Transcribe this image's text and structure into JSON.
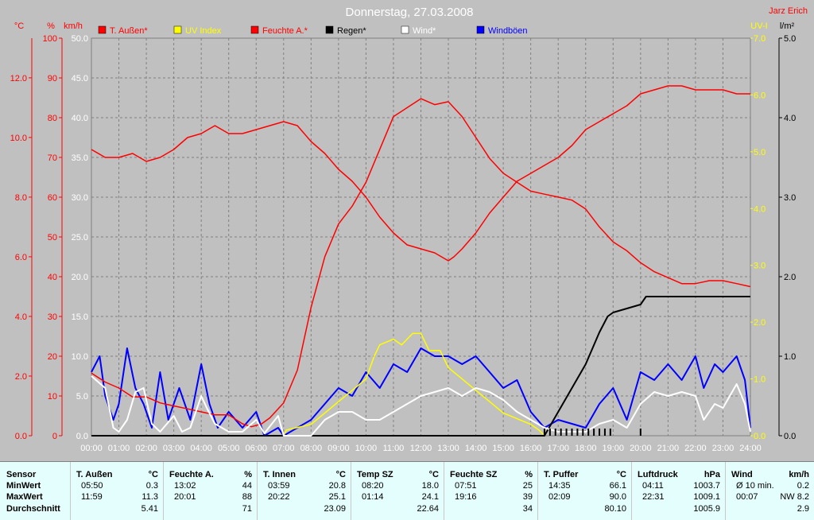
{
  "chart_data": {
    "type": "line",
    "title": "Donnerstag, 27.03.2008",
    "author": "Jarz Erich",
    "x_tick_labels": [
      "00:00",
      "01:00",
      "02:00",
      "03:00",
      "04:00",
      "05:00",
      "06:00",
      "07:00",
      "08:00",
      "09:00",
      "10:00",
      "11:00",
      "12:00",
      "13:00",
      "14:00",
      "15:00",
      "16:00",
      "17:00",
      "18:00",
      "19:00",
      "20:00",
      "21:00",
      "22:00",
      "23:00",
      "24:00"
    ],
    "axes": {
      "temp": {
        "unit": "°C",
        "ticks": [
          "0.0",
          "2.0",
          "4.0",
          "6.0",
          "8.0",
          "10.0",
          "12.0"
        ],
        "range": [
          0,
          13.33
        ]
      },
      "hum": {
        "unit": "%",
        "ticks": [
          "0",
          "10",
          "20",
          "30",
          "40",
          "50",
          "60",
          "70",
          "80",
          "90",
          "100"
        ],
        "range": [
          0,
          100
        ]
      },
      "wind": {
        "unit": "km/h",
        "ticks": [
          "0.0",
          "5.0",
          "10.0",
          "15.0",
          "20.0",
          "25.0",
          "30.0",
          "35.0",
          "40.0",
          "45.0",
          "50.0"
        ],
        "range": [
          0,
          50
        ]
      },
      "uv": {
        "unit": "UV-I",
        "ticks": [
          "0.0",
          "1.0",
          "2.0",
          "3.0",
          "4.0",
          "5.0",
          "6.0",
          "7.0"
        ],
        "range": [
          0,
          7
        ]
      },
      "rain": {
        "unit": "l/m²",
        "ticks": [
          "0.0",
          "1.0",
          "2.0",
          "3.0",
          "4.0",
          "5.0"
        ],
        "range": [
          0,
          5
        ]
      }
    },
    "grid": true,
    "legend_position": "top",
    "series": [
      {
        "name": "T. Außen*",
        "color": "#ff0000",
        "axis": "temp",
        "points": [
          [
            0,
            2.1
          ],
          [
            0.5,
            1.8
          ],
          [
            1,
            1.6
          ],
          [
            1.5,
            1.3
          ],
          [
            2,
            1.3
          ],
          [
            2.5,
            1.1
          ],
          [
            3,
            1.0
          ],
          [
            3.5,
            0.9
          ],
          [
            4,
            0.8
          ],
          [
            4.5,
            0.7
          ],
          [
            5,
            0.7
          ],
          [
            5.5,
            0.4
          ],
          [
            5.83,
            0.3
          ],
          [
            6.2,
            0.4
          ],
          [
            6.5,
            0.6
          ],
          [
            7,
            1.1
          ],
          [
            7.5,
            2.2
          ],
          [
            8,
            4.3
          ],
          [
            8.5,
            6.0
          ],
          [
            9,
            7.1
          ],
          [
            9.5,
            7.7
          ],
          [
            10,
            8.5
          ],
          [
            10.5,
            9.6
          ],
          [
            11,
            10.7
          ],
          [
            11.5,
            11.0
          ],
          [
            12,
            11.3
          ],
          [
            12.5,
            11.1
          ],
          [
            13,
            11.2
          ],
          [
            13.5,
            10.7
          ],
          [
            14,
            10.0
          ],
          [
            14.5,
            9.3
          ],
          [
            15,
            8.8
          ],
          [
            15.5,
            8.5
          ],
          [
            16,
            8.2
          ],
          [
            16.5,
            8.1
          ],
          [
            17,
            8.0
          ],
          [
            17.5,
            7.9
          ],
          [
            18,
            7.6
          ],
          [
            18.5,
            7.0
          ],
          [
            19,
            6.5
          ],
          [
            19.5,
            6.2
          ],
          [
            20,
            5.8
          ],
          [
            20.5,
            5.5
          ],
          [
            21,
            5.3
          ],
          [
            21.5,
            5.1
          ],
          [
            22,
            5.1
          ],
          [
            22.5,
            5.2
          ],
          [
            23,
            5.2
          ],
          [
            23.5,
            5.1
          ],
          [
            24,
            5.0
          ]
        ]
      },
      {
        "name": "UV Index",
        "color": "#ffff00",
        "axis": "uv",
        "points": [
          [
            0,
            0
          ],
          [
            7,
            0
          ],
          [
            7.1,
            0.1
          ],
          [
            8,
            0.2
          ],
          [
            8.5,
            0.4
          ],
          [
            9,
            0.6
          ],
          [
            9.5,
            0.8
          ],
          [
            10,
            1.0
          ],
          [
            10.3,
            1.4
          ],
          [
            10.5,
            1.6
          ],
          [
            11,
            1.7
          ],
          [
            11.3,
            1.6
          ],
          [
            11.7,
            1.8
          ],
          [
            12,
            1.8
          ],
          [
            12.3,
            1.5
          ],
          [
            12.7,
            1.5
          ],
          [
            13,
            1.2
          ],
          [
            13.5,
            1.0
          ],
          [
            14,
            0.8
          ],
          [
            14.5,
            0.6
          ],
          [
            15,
            0.4
          ],
          [
            15.5,
            0.3
          ],
          [
            16,
            0.2
          ],
          [
            16.3,
            0.1
          ],
          [
            16.5,
            0
          ]
        ]
      },
      {
        "name": "Feuchte A.*",
        "color": "#ff0000",
        "axis": "hum",
        "points": [
          [
            0,
            72
          ],
          [
            0.5,
            70
          ],
          [
            1,
            70
          ],
          [
            1.5,
            71
          ],
          [
            2,
            69
          ],
          [
            2.5,
            70
          ],
          [
            3,
            72
          ],
          [
            3.5,
            75
          ],
          [
            4,
            76
          ],
          [
            4.5,
            78
          ],
          [
            5,
            76
          ],
          [
            5.5,
            76
          ],
          [
            6,
            77
          ],
          [
            6.5,
            78
          ],
          [
            7,
            79
          ],
          [
            7.5,
            78
          ],
          [
            8,
            74
          ],
          [
            8.5,
            71
          ],
          [
            9,
            67
          ],
          [
            9.5,
            64
          ],
          [
            10,
            60
          ],
          [
            10.5,
            55
          ],
          [
            11,
            51
          ],
          [
            11.5,
            48
          ],
          [
            12,
            47
          ],
          [
            12.5,
            46
          ],
          [
            13,
            44
          ],
          [
            13.2,
            45
          ],
          [
            13.5,
            47
          ],
          [
            14,
            51
          ],
          [
            14.5,
            56
          ],
          [
            15,
            60
          ],
          [
            15.5,
            64
          ],
          [
            16,
            66
          ],
          [
            16.5,
            68
          ],
          [
            17,
            70
          ],
          [
            17.5,
            73
          ],
          [
            18,
            77
          ],
          [
            18.5,
            79
          ],
          [
            19,
            81
          ],
          [
            19.5,
            83
          ],
          [
            20,
            86
          ],
          [
            20.5,
            87
          ],
          [
            21,
            88
          ],
          [
            21.5,
            88
          ],
          [
            22,
            87
          ],
          [
            22.5,
            87
          ],
          [
            23,
            87
          ],
          [
            23.5,
            86
          ],
          [
            24,
            86
          ]
        ]
      },
      {
        "name": "Regen*",
        "color": "#000000",
        "axis": "rain",
        "points": [
          [
            0,
            0
          ],
          [
            16.5,
            0
          ],
          [
            17,
            0.3
          ],
          [
            17.5,
            0.6
          ],
          [
            18,
            0.9
          ],
          [
            18.5,
            1.3
          ],
          [
            18.8,
            1.5
          ],
          [
            19,
            1.55
          ],
          [
            19.5,
            1.6
          ],
          [
            20,
            1.65
          ],
          [
            20.2,
            1.75
          ],
          [
            21,
            1.75
          ],
          [
            22,
            1.75
          ],
          [
            23,
            1.75
          ],
          [
            24,
            1.75
          ]
        ]
      },
      {
        "name": "Wind*",
        "color": "#ffffff",
        "axis": "wind",
        "points": [
          [
            0,
            7.5
          ],
          [
            0.5,
            6.0
          ],
          [
            0.8,
            1.0
          ],
          [
            1,
            0.5
          ],
          [
            1.3,
            2.0
          ],
          [
            1.6,
            5.5
          ],
          [
            1.9,
            6.0
          ],
          [
            2.2,
            1.5
          ],
          [
            2.5,
            0.5
          ],
          [
            3,
            2.5
          ],
          [
            3.3,
            0.5
          ],
          [
            3.6,
            1.0
          ],
          [
            3.8,
            3.0
          ],
          [
            4,
            5.0
          ],
          [
            4.2,
            3.5
          ],
          [
            4.5,
            1.5
          ],
          [
            5,
            0.5
          ],
          [
            5.5,
            0.5
          ],
          [
            6,
            2.0
          ],
          [
            6.3,
            0.3
          ],
          [
            6.8,
            2.5
          ],
          [
            7,
            0
          ],
          [
            8,
            0
          ],
          [
            8.5,
            2.0
          ],
          [
            9,
            3.0
          ],
          [
            9.5,
            3.0
          ],
          [
            10,
            2.0
          ],
          [
            10.5,
            2.0
          ],
          [
            11,
            3.0
          ],
          [
            11.5,
            4.0
          ],
          [
            12,
            5.0
          ],
          [
            12.5,
            5.5
          ],
          [
            13,
            6.0
          ],
          [
            13.5,
            5.0
          ],
          [
            14,
            6.0
          ],
          [
            14.5,
            5.5
          ],
          [
            15,
            4.5
          ],
          [
            15.5,
            3.0
          ],
          [
            16,
            2.0
          ],
          [
            16.5,
            1.0
          ],
          [
            17,
            0.5
          ],
          [
            18,
            0.5
          ],
          [
            18.5,
            1.5
          ],
          [
            19,
            2.0
          ],
          [
            19.5,
            1.0
          ],
          [
            20,
            4.0
          ],
          [
            20.5,
            5.5
          ],
          [
            21,
            5.0
          ],
          [
            21.5,
            5.5
          ],
          [
            22,
            5.0
          ],
          [
            22.3,
            2.0
          ],
          [
            22.7,
            4.0
          ],
          [
            23,
            3.5
          ],
          [
            23.5,
            6.5
          ],
          [
            23.8,
            4.0
          ],
          [
            24,
            0.5
          ]
        ]
      },
      {
        "name": "Windböen",
        "color": "#0000ff",
        "axis": "wind",
        "points": [
          [
            0,
            8
          ],
          [
            0.3,
            10
          ],
          [
            0.5,
            5
          ],
          [
            0.8,
            2
          ],
          [
            1,
            4
          ],
          [
            1.3,
            11
          ],
          [
            1.6,
            6
          ],
          [
            1.9,
            4
          ],
          [
            2.2,
            1
          ],
          [
            2.5,
            8
          ],
          [
            2.8,
            2
          ],
          [
            3.2,
            6
          ],
          [
            3.6,
            2
          ],
          [
            4,
            9
          ],
          [
            4.3,
            4
          ],
          [
            4.6,
            1
          ],
          [
            5,
            3
          ],
          [
            5.5,
            1
          ],
          [
            6,
            3
          ],
          [
            6.3,
            0
          ],
          [
            6.8,
            1
          ],
          [
            7,
            0
          ],
          [
            8,
            2
          ],
          [
            8.5,
            4
          ],
          [
            9,
            6
          ],
          [
            9.5,
            5
          ],
          [
            10,
            8
          ],
          [
            10.5,
            6
          ],
          [
            11,
            9
          ],
          [
            11.5,
            8
          ],
          [
            12,
            11
          ],
          [
            12.5,
            10
          ],
          [
            13,
            10
          ],
          [
            13.5,
            9
          ],
          [
            14,
            10
          ],
          [
            14.5,
            8
          ],
          [
            15,
            6
          ],
          [
            15.5,
            7
          ],
          [
            16,
            3
          ],
          [
            16.5,
            1
          ],
          [
            17,
            2
          ],
          [
            18,
            1
          ],
          [
            18.5,
            4
          ],
          [
            19,
            6
          ],
          [
            19.5,
            2
          ],
          [
            20,
            8
          ],
          [
            20.5,
            7
          ],
          [
            21,
            9
          ],
          [
            21.5,
            7
          ],
          [
            22,
            10
          ],
          [
            22.3,
            6
          ],
          [
            22.7,
            9
          ],
          [
            23,
            8
          ],
          [
            23.5,
            10
          ],
          [
            23.8,
            7
          ],
          [
            24,
            1
          ]
        ]
      }
    ],
    "rain_markers_hours": [
      16.5,
      16.7,
      16.9,
      17.1,
      17.3,
      17.5,
      17.7,
      17.9,
      18.1,
      18.3,
      18.5,
      18.7,
      18.9,
      20
    ]
  },
  "stats": {
    "row_labels": {
      "sensor": "Sensor",
      "min": "MinWert",
      "max": "MaxWert",
      "avg": "Durchschnitt"
    },
    "columns": [
      {
        "name": "T. Außen",
        "unit": "°C",
        "min_time": "05:50",
        "min_val": "0.3",
        "max_time": "11:59",
        "max_val": "11.3",
        "avg": "5.41"
      },
      {
        "name": "Feuchte A.",
        "unit": "%",
        "min_time": "13:02",
        "min_val": "44",
        "max_time": "20:01",
        "max_val": "88",
        "avg": "71"
      },
      {
        "name": "T. Innen",
        "unit": "°C",
        "min_time": "03:59",
        "min_val": "20.8",
        "max_time": "20:22",
        "max_val": "25.1",
        "avg": "23.09"
      },
      {
        "name": "Temp SZ",
        "unit": "°C",
        "min_time": "08:20",
        "min_val": "18.0",
        "max_time": "01:14",
        "max_val": "24.1",
        "avg": "22.64"
      },
      {
        "name": "Feuchte SZ",
        "unit": "%",
        "min_time": "07:51",
        "min_val": "25",
        "max_time": "19:16",
        "max_val": "39",
        "avg": "34"
      },
      {
        "name": "T. Puffer",
        "unit": "°C",
        "min_time": "14:35",
        "min_val": "66.1",
        "max_time": "02:09",
        "max_val": "90.0",
        "avg": "80.10"
      },
      {
        "name": "Luftdruck",
        "unit": "hPa",
        "min_time": "04:11",
        "min_val": "1003.7",
        "max_time": "22:31",
        "max_val": "1009.1",
        "avg": "1005.9"
      },
      {
        "name": "Wind",
        "unit": "km/h",
        "min_time": "Ø 10 min.",
        "min_val": "0.2",
        "max_time": "00:07",
        "max_val": "NW 8.2",
        "avg": "2.9"
      }
    ]
  }
}
